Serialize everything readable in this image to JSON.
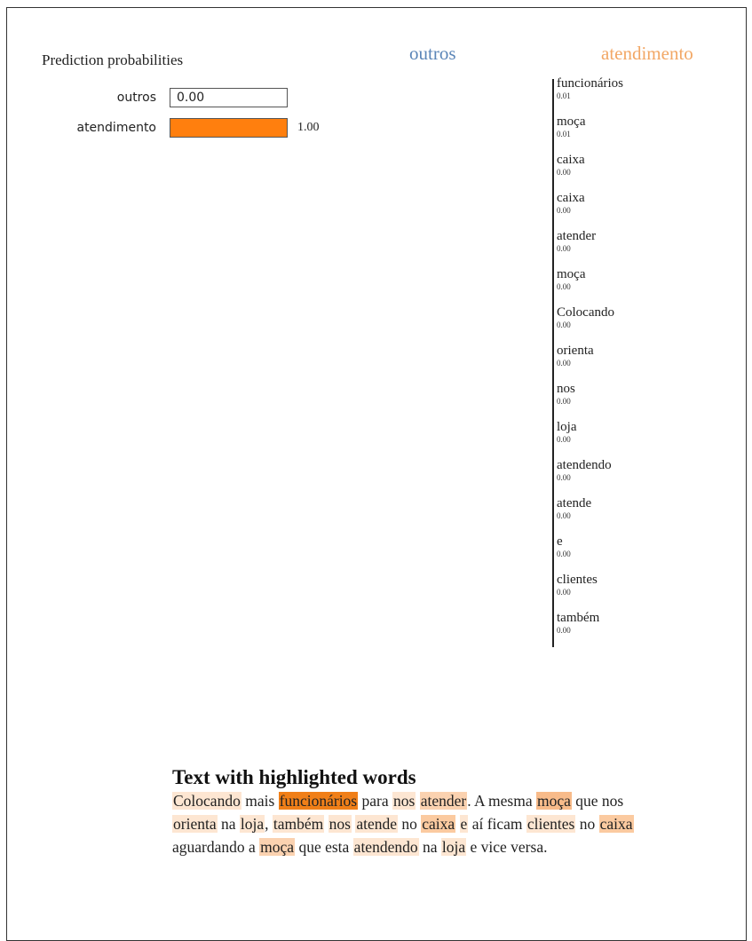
{
  "prediction": {
    "title": "Prediction probabilities",
    "rows": [
      {
        "label": "outros",
        "value": 0.0,
        "display": "0.00",
        "color": "#1f77b4"
      },
      {
        "label": "atendimento",
        "value": 1.0,
        "display": "1.00",
        "color": "#ff7f0e"
      }
    ]
  },
  "headers": {
    "left": "outros",
    "left_color": "#5b86b8",
    "right": "atendimento",
    "right_color": "#f2a765"
  },
  "features": [
    {
      "word": "funcionários",
      "weight": "0.01"
    },
    {
      "word": "moça",
      "weight": "0.01"
    },
    {
      "word": "caixa",
      "weight": "0.00"
    },
    {
      "word": "caixa",
      "weight": "0.00"
    },
    {
      "word": "atender",
      "weight": "0.00"
    },
    {
      "word": "moça",
      "weight": "0.00"
    },
    {
      "word": "Colocando",
      "weight": "0.00"
    },
    {
      "word": "orienta",
      "weight": "0.00"
    },
    {
      "word": "nos",
      "weight": "0.00"
    },
    {
      "word": "loja",
      "weight": "0.00"
    },
    {
      "word": "atendendo",
      "weight": "0.00"
    },
    {
      "word": "atende",
      "weight": "0.00"
    },
    {
      "word": "e",
      "weight": "0.00"
    },
    {
      "word": "clientes",
      "weight": "0.00"
    },
    {
      "word": "também",
      "weight": "0.00"
    }
  ],
  "text": {
    "title": "Text with highlighted words",
    "tokens": [
      {
        "t": "Colocando",
        "h": "#fde6d2"
      },
      {
        "t": " mais "
      },
      {
        "t": "funcionários",
        "h": "#f07f18"
      },
      {
        "t": " para "
      },
      {
        "t": "nos",
        "h": "#fde6d2"
      },
      {
        "t": " "
      },
      {
        "t": "atender",
        "h": "#fbd2b0"
      },
      {
        "t": ". A mesma "
      },
      {
        "t": "moça",
        "h": "#f8bb8a"
      },
      {
        "t": " que nos "
      },
      {
        "t": "orienta",
        "h": "#fde6d2"
      },
      {
        "t": " na "
      },
      {
        "t": "loja",
        "h": "#fde6d2"
      },
      {
        "t": ", "
      },
      {
        "t": "também",
        "h": "#fde6d2"
      },
      {
        "t": " "
      },
      {
        "t": "nos",
        "h": "#fde6d2"
      },
      {
        "t": " "
      },
      {
        "t": "atende",
        "h": "#fde6d2"
      },
      {
        "t": " no "
      },
      {
        "t": "caixa",
        "h": "#fbcaa0"
      },
      {
        "t": " "
      },
      {
        "t": "e",
        "h": "#fde6d2"
      },
      {
        "t": " aí ficam "
      },
      {
        "t": "clientes",
        "h": "#fde6d2"
      },
      {
        "t": " no "
      },
      {
        "t": "caixa",
        "h": "#fbcaa0"
      },
      {
        "t": " aguardando a "
      },
      {
        "t": "moça",
        "h": "#fbd2b0"
      },
      {
        "t": " que esta "
      },
      {
        "t": "atendendo",
        "h": "#fde6d2"
      },
      {
        "t": " na "
      },
      {
        "t": "loja",
        "h": "#fde6d2"
      },
      {
        "t": " e vice versa."
      }
    ]
  }
}
